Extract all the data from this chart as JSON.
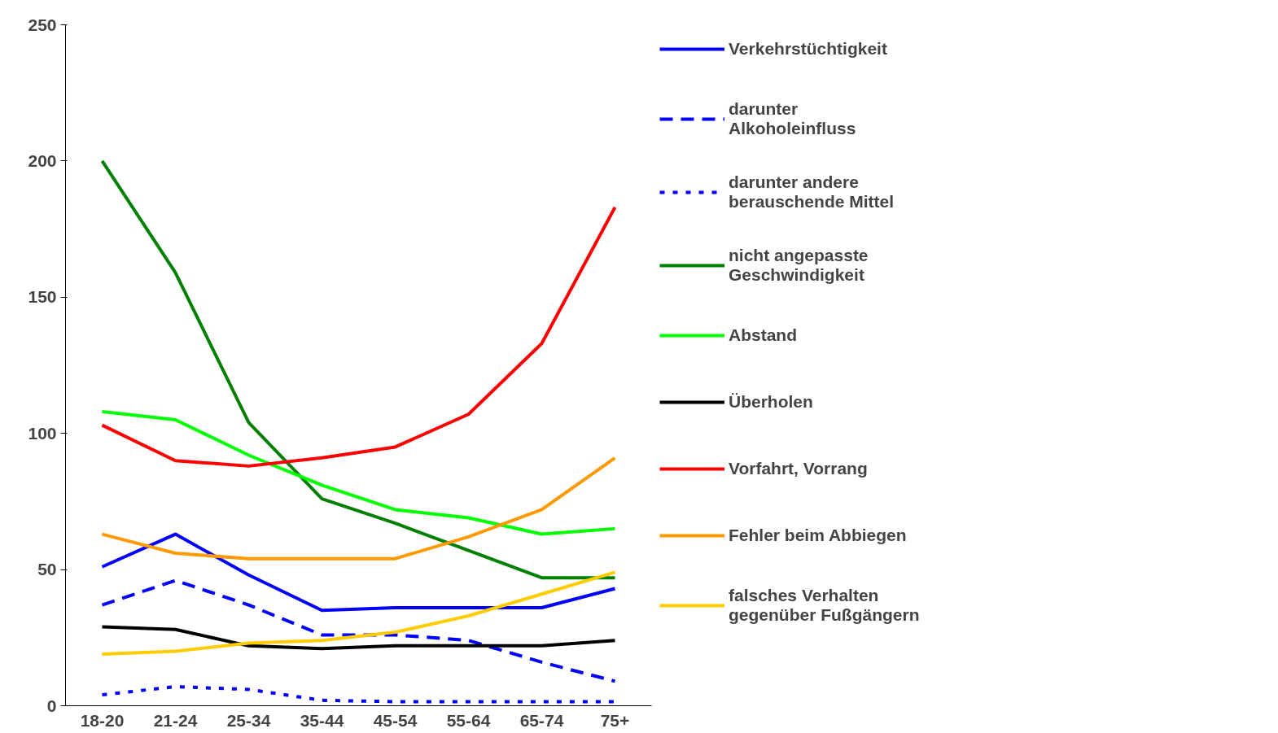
{
  "chart_data": {
    "type": "line",
    "categories": [
      "18-20",
      "21-24",
      "25-34",
      "35-44",
      "45-54",
      "55-64",
      "65-74",
      "75+"
    ],
    "ylim": [
      0,
      250
    ],
    "yticks": [
      0,
      50,
      100,
      150,
      200,
      250
    ],
    "grid": false,
    "legend": "right",
    "marker": "none",
    "series": [
      {
        "name": "Verkehrstüchtigkeit",
        "color": "#0000ff",
        "line_style": "solid",
        "values": [
          51,
          63,
          48,
          35,
          36,
          36,
          36,
          43
        ]
      },
      {
        "name": "darunter Alkoholeinfluss",
        "color": "#0000ff",
        "line_style": "dashed",
        "values": [
          37,
          46,
          37,
          26,
          26,
          24,
          16,
          9
        ]
      },
      {
        "name": "darunter andere berauschende Mittel",
        "color": "#0000ff",
        "line_style": "dotted",
        "values": [
          4,
          7,
          6,
          2,
          1.5,
          1.5,
          1.5,
          1.5
        ]
      },
      {
        "name": "nicht angepasste Geschwindigkeit",
        "color": "#008000",
        "line_style": "solid",
        "values": [
          200,
          159,
          104,
          76,
          67,
          57,
          47,
          47
        ]
      },
      {
        "name": "Abstand",
        "color": "#00ff00",
        "line_style": "solid",
        "values": [
          108,
          105,
          92,
          81,
          72,
          69,
          63,
          65
        ]
      },
      {
        "name": "Überholen",
        "color": "#000000",
        "line_style": "solid",
        "values": [
          29,
          28,
          22,
          21,
          22,
          22,
          22,
          24
        ]
      },
      {
        "name": "Vorfahrt, Vorrang",
        "color": "#ff0000",
        "line_style": "solid",
        "values": [
          103,
          90,
          88,
          91,
          95,
          107,
          133,
          183
        ]
      },
      {
        "name": "Fehler beim Abbiegen",
        "color": "#ff9900",
        "line_style": "solid",
        "values": [
          63,
          56,
          54,
          54,
          54,
          62,
          72,
          91
        ]
      },
      {
        "name": "falsches Verhalten gegenüber Fußgängern",
        "color": "#ffcc00",
        "line_style": "solid",
        "values": [
          19,
          20,
          23,
          24,
          27,
          33,
          41,
          49
        ]
      }
    ]
  }
}
